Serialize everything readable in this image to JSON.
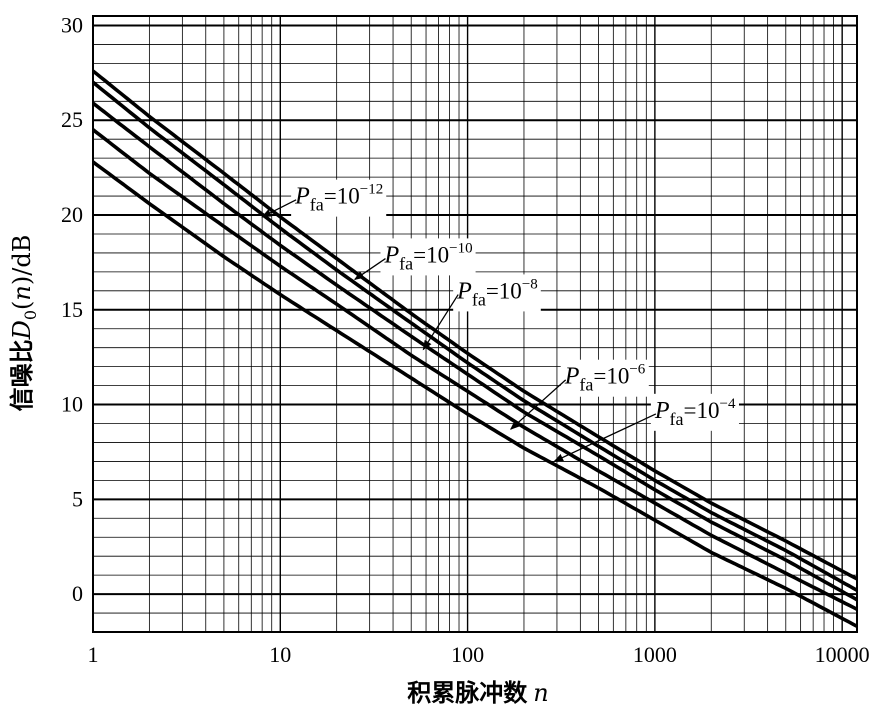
{
  "chart_data": {
    "type": "line",
    "title": "",
    "xlabel_cjk": "积累脉冲数",
    "xlabel_var": "n",
    "ylabel_cjk": "信噪比",
    "ylabel_var": "D",
    "ylabel_sub": "0",
    "ylabel_paren_open": "(",
    "ylabel_arg": "n",
    "ylabel_paren_close": ")",
    "ylabel_unit": "/dB",
    "x_scale": "log",
    "xlim": [
      1,
      12000
    ],
    "ylim": [
      -2,
      30.5
    ],
    "x_ticks": [
      {
        "value": 1,
        "label": "1"
      },
      {
        "value": 10,
        "label": "10"
      },
      {
        "value": 100,
        "label": "100"
      },
      {
        "value": 1000,
        "label": "1000"
      },
      {
        "value": 10000,
        "label": "10000"
      }
    ],
    "y_ticks": [
      {
        "value": 0,
        "label": "0"
      },
      {
        "value": 5,
        "label": "5"
      },
      {
        "value": 10,
        "label": "10"
      },
      {
        "value": 15,
        "label": "15"
      },
      {
        "value": 20,
        "label": "20"
      },
      {
        "value": 25,
        "label": "25"
      },
      {
        "value": 30,
        "label": "30"
      }
    ],
    "grid": true,
    "x": [
      1,
      2,
      5,
      10,
      20,
      50,
      100,
      200,
      500,
      1000,
      2000,
      5000,
      12000
    ],
    "series": [
      {
        "name": "Pfa=10^-12",
        "label_p": "P",
        "label_sub": "fa",
        "label_main": "=10",
        "label_sup": "−12",
        "values": [
          27.6,
          25.2,
          22.2,
          19.9,
          17.7,
          14.8,
          12.7,
          10.7,
          8.3,
          6.5,
          4.8,
          2.8,
          0.8
        ]
      },
      {
        "name": "Pfa=10^-10",
        "label_p": "P",
        "label_sub": "fa",
        "label_main": "=10",
        "label_sup": "−10",
        "values": [
          27.0,
          24.6,
          21.6,
          19.3,
          17.1,
          14.3,
          12.2,
          10.2,
          7.8,
          6.0,
          4.3,
          2.3,
          0.2
        ]
      },
      {
        "name": "Pfa=10^-8",
        "label_p": "P",
        "label_sub": "fa",
        "label_main": "=10",
        "label_sup": "−8",
        "values": [
          25.9,
          23.6,
          20.6,
          18.4,
          16.3,
          13.6,
          11.6,
          9.6,
          7.3,
          5.5,
          3.8,
          1.8,
          -0.3
        ]
      },
      {
        "name": "Pfa=10^-6",
        "label_p": "P",
        "label_sub": "fa",
        "label_main": "=10",
        "label_sup": "−6",
        "values": [
          24.5,
          22.2,
          19.4,
          17.3,
          15.3,
          12.6,
          10.7,
          8.8,
          6.5,
          4.8,
          3.1,
          1.1,
          -0.8
        ]
      },
      {
        "name": "Pfa=10^-4",
        "label_p": "P",
        "label_sub": "fa",
        "label_main": "=10",
        "label_sup": "−4",
        "values": [
          22.8,
          20.6,
          17.8,
          15.8,
          13.9,
          11.4,
          9.5,
          7.7,
          5.6,
          3.9,
          2.2,
          0.3,
          -1.7
        ]
      }
    ],
    "annotations": [
      {
        "series": 0,
        "tx": 12,
        "ty": 20.6,
        "ax": 8,
        "ay": 19.9
      },
      {
        "series": 1,
        "tx": 36,
        "ty": 17.5,
        "ax": 25,
        "ay": 16.6
      },
      {
        "series": 2,
        "tx": 88,
        "ty": 15.6,
        "ax": 58,
        "ay": 12.9
      },
      {
        "series": 3,
        "tx": 330,
        "ty": 11.1,
        "ax": 170,
        "ay": 8.7
      },
      {
        "series": 4,
        "tx": 1000,
        "ty": 9.3,
        "ax": 290,
        "ay": 7.0
      }
    ]
  }
}
